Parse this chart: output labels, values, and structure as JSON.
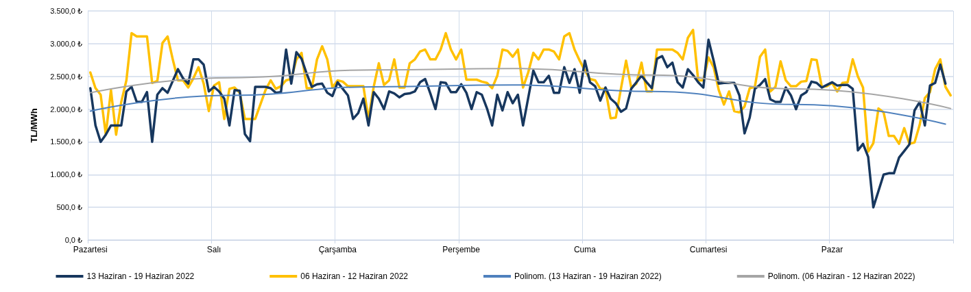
{
  "chart_data": {
    "type": "line",
    "ylabel": "TL/MWh",
    "categories": [
      "Pazartesi",
      null,
      null,
      null,
      null,
      null,
      null,
      null,
      null,
      null,
      null,
      null,
      null,
      null,
      null,
      null,
      null,
      null,
      null,
      null,
      null,
      null,
      null,
      null,
      "Salı",
      null,
      null,
      null,
      null,
      null,
      null,
      null,
      null,
      null,
      null,
      null,
      null,
      null,
      null,
      null,
      null,
      null,
      null,
      null,
      null,
      null,
      null,
      null,
      "Çarşamba",
      null,
      null,
      null,
      null,
      null,
      null,
      null,
      null,
      null,
      null,
      null,
      null,
      null,
      null,
      null,
      null,
      null,
      null,
      null,
      null,
      null,
      null,
      null,
      "Perşembe",
      null,
      null,
      null,
      null,
      null,
      null,
      null,
      null,
      null,
      null,
      null,
      null,
      null,
      null,
      null,
      null,
      null,
      null,
      null,
      null,
      null,
      null,
      null,
      "Cuma",
      null,
      null,
      null,
      null,
      null,
      null,
      null,
      null,
      null,
      null,
      null,
      null,
      null,
      null,
      null,
      null,
      null,
      null,
      null,
      null,
      null,
      null,
      null,
      "Cumartesi",
      null,
      null,
      null,
      null,
      null,
      null,
      null,
      null,
      null,
      null,
      null,
      null,
      null,
      null,
      null,
      null,
      null,
      null,
      null,
      null,
      null,
      null,
      null,
      "Pazar",
      null,
      null,
      null,
      null,
      null,
      null,
      null,
      null,
      null,
      null,
      null,
      null,
      null,
      null,
      null,
      null,
      null,
      null,
      null,
      null,
      null,
      null,
      null
    ],
    "ylim": [
      0,
      3500
    ],
    "yticks": [
      {
        "value": 0,
        "label": "0,0 ₺"
      },
      {
        "value": 500,
        "label": "500,0 ₺"
      },
      {
        "value": 1000,
        "label": "1.000,0 ₺"
      },
      {
        "value": 1500,
        "label": "1.500,0 ₺"
      },
      {
        "value": 2000,
        "label": "2.000,0 ₺"
      },
      {
        "value": 2500,
        "label": "2.500,0 ₺"
      },
      {
        "value": 3000,
        "label": "3.000,0 ₺"
      },
      {
        "value": 3500,
        "label": "3.500,0 ₺"
      }
    ],
    "grid": true,
    "legend": "bottom",
    "marker": "none",
    "series": [
      {
        "name": "13 Haziran - 19 Haziran 2022",
        "color": "#17375e",
        "values": [
          2320,
          1750,
          1500,
          1610,
          1750,
          1750,
          1750,
          2270,
          2340,
          2110,
          2110,
          2260,
          1500,
          2220,
          2320,
          2250,
          2430,
          2610,
          2470,
          2390,
          2760,
          2760,
          2680,
          2270,
          2340,
          2270,
          2160,
          1750,
          2290,
          2280,
          1620,
          1510,
          2340,
          2340,
          2340,
          2320,
          2250,
          2260,
          2910,
          2390,
          2870,
          2770,
          2540,
          2340,
          2380,
          2390,
          2250,
          2200,
          2410,
          2310,
          2210,
          1850,
          1940,
          2160,
          1750,
          2260,
          2160,
          2000,
          2270,
          2240,
          2180,
          2230,
          2240,
          2270,
          2410,
          2460,
          2240,
          2000,
          2410,
          2400,
          2260,
          2260,
          2380,
          2250,
          2000,
          2260,
          2220,
          2010,
          1750,
          2220,
          1980,
          2260,
          2090,
          2220,
          1750,
          2170,
          2590,
          2410,
          2410,
          2510,
          2250,
          2250,
          2640,
          2400,
          2610,
          2250,
          2740,
          2410,
          2350,
          2130,
          2330,
          2160,
          2090,
          1960,
          2010,
          2310,
          2410,
          2510,
          2410,
          2320,
          2770,
          2810,
          2640,
          2710,
          2410,
          2330,
          2610,
          2520,
          2410,
          2330,
          3060,
          2740,
          2390,
          2400,
          2400,
          2400,
          2210,
          1630,
          1870,
          2310,
          2370,
          2460,
          2150,
          2110,
          2110,
          2330,
          2210,
          2000,
          2210,
          2260,
          2420,
          2400,
          2330,
          2370,
          2410,
          2360,
          2370,
          2370,
          2310,
          1370,
          1470,
          1270,
          500,
          750,
          1000,
          1020,
          1020,
          1260,
          1360,
          1460,
          1980,
          2110,
          1750,
          2360,
          2400,
          2680,
          2390,
          null
        ]
      },
      {
        "name": "06 Haziran - 12 Haziran 2022",
        "color": "#ffc000",
        "values": [
          2560,
          2320,
          2220,
          1610,
          2290,
          1610,
          2110,
          2440,
          3160,
          3110,
          3110,
          3110,
          2400,
          2430,
          3010,
          3110,
          2760,
          2440,
          2440,
          2330,
          2470,
          2640,
          2390,
          1970,
          2360,
          2410,
          1850,
          2310,
          2330,
          2250,
          1850,
          1850,
          1850,
          2070,
          2290,
          2440,
          2310,
          2350,
          2440,
          2460,
          2760,
          2860,
          2320,
          2320,
          2760,
          2960,
          2760,
          2330,
          2440,
          2420,
          2350,
          2350,
          2350,
          2350,
          1850,
          2340,
          2700,
          2370,
          2440,
          2760,
          2330,
          2330,
          2700,
          2760,
          2880,
          2910,
          2760,
          2760,
          2910,
          3160,
          2910,
          2760,
          2910,
          2450,
          2450,
          2450,
          2420,
          2400,
          2320,
          2510,
          2910,
          2890,
          2800,
          2910,
          2330,
          2560,
          2860,
          2760,
          2910,
          2910,
          2880,
          2760,
          3110,
          3160,
          2910,
          2740,
          2590,
          2460,
          2440,
          2310,
          2310,
          1860,
          1870,
          2310,
          2740,
          2330,
          2390,
          2710,
          2270,
          2270,
          2910,
          2910,
          2910,
          2910,
          2860,
          2760,
          3090,
          3210,
          2440,
          2440,
          2790,
          2640,
          2290,
          2070,
          2270,
          1970,
          1950,
          2040,
          2320,
          2340,
          2800,
          2910,
          2270,
          2340,
          2730,
          2440,
          2350,
          2350,
          2420,
          2430,
          2760,
          2750,
          2340,
          2350,
          2400,
          2270,
          2400,
          2410,
          2760,
          2500,
          2330,
          1350,
          1480,
          2010,
          1950,
          1590,
          1590,
          1470,
          1710,
          1470,
          1490,
          1760,
          2170,
          2260,
          2610,
          2760,
          2340,
          2210
        ]
      },
      {
        "name": "Polinom. (13 Haziran - 19 Haziran 2022)",
        "color": "#4f81bd",
        "type": "line",
        "values": [
          1970,
          null,
          null,
          null,
          null,
          null,
          null,
          null,
          null,
          null,
          null,
          null,
          null,
          null,
          null,
          null,
          null,
          null,
          null,
          null,
          null,
          null,
          null,
          null,
          null,
          null,
          null,
          2210,
          null,
          null,
          null,
          null,
          null,
          null,
          null,
          null,
          null,
          null,
          null,
          null,
          null,
          null,
          null,
          null,
          null,
          null,
          null,
          null,
          null,
          null,
          null,
          null,
          null,
          null,
          null,
          2340,
          null,
          null,
          null,
          null,
          null,
          null,
          null,
          null,
          null,
          null,
          null,
          null,
          null,
          null,
          null,
          null,
          null,
          null,
          null,
          null,
          null,
          null,
          null,
          null,
          null,
          null,
          2370,
          null,
          null,
          null,
          null,
          null,
          null,
          null,
          null,
          null,
          null,
          null,
          null,
          null,
          null,
          null,
          null,
          null,
          null,
          null,
          null,
          null,
          null,
          null,
          null,
          null,
          null,
          2270,
          null,
          null,
          null,
          null,
          null,
          null,
          null,
          null,
          null,
          null,
          null,
          null,
          null,
          null,
          null,
          null,
          null,
          null,
          null,
          null,
          null,
          null,
          null,
          null,
          null,
          null,
          null,
          2070,
          null,
          null,
          null,
          null,
          null,
          null,
          null,
          null,
          null,
          null,
          null,
          null,
          null,
          null,
          null,
          null,
          null,
          null,
          null,
          null,
          null,
          null,
          null,
          null,
          null,
          null,
          null,
          null,
          1770,
          null
        ]
      },
      {
        "name": "Polinom. (06 Haziran - 12 Haziran 2022)",
        "color": "#a5a5a5",
        "type": "line",
        "values": [
          2250,
          null,
          null,
          null,
          null,
          null,
          null,
          null,
          null,
          null,
          null,
          null,
          null,
          null,
          null,
          null,
          null,
          null,
          null,
          null,
          null,
          null,
          null,
          null,
          null,
          null,
          null,
          2480,
          null,
          null,
          null,
          null,
          null,
          null,
          null,
          null,
          null,
          null,
          null,
          null,
          null,
          null,
          null,
          null,
          null,
          null,
          null,
          null,
          null,
          null,
          null,
          null,
          null,
          null,
          null,
          2600,
          null,
          null,
          null,
          null,
          null,
          null,
          null,
          null,
          null,
          null,
          null,
          null,
          null,
          null,
          null,
          null,
          null,
          null,
          null,
          null,
          null,
          null,
          null,
          null,
          null,
          null,
          2620,
          null,
          null,
          null,
          null,
          null,
          null,
          null,
          null,
          null,
          null,
          null,
          null,
          null,
          null,
          null,
          null,
          null,
          null,
          null,
          null,
          null,
          null,
          null,
          null,
          null,
          null,
          2520,
          null,
          null,
          null,
          null,
          null,
          null,
          null,
          null,
          null,
          null,
          null,
          null,
          null,
          null,
          null,
          null,
          null,
          null,
          null,
          null,
          null,
          null,
          null,
          null,
          null,
          null,
          null,
          2310,
          null,
          null,
          null,
          null,
          null,
          null,
          null,
          null,
          null,
          null,
          null,
          null,
          null,
          null,
          null,
          null,
          null,
          null,
          null,
          null,
          null,
          null,
          null,
          null,
          null,
          null,
          null,
          null,
          null,
          2010
        ]
      }
    ]
  }
}
